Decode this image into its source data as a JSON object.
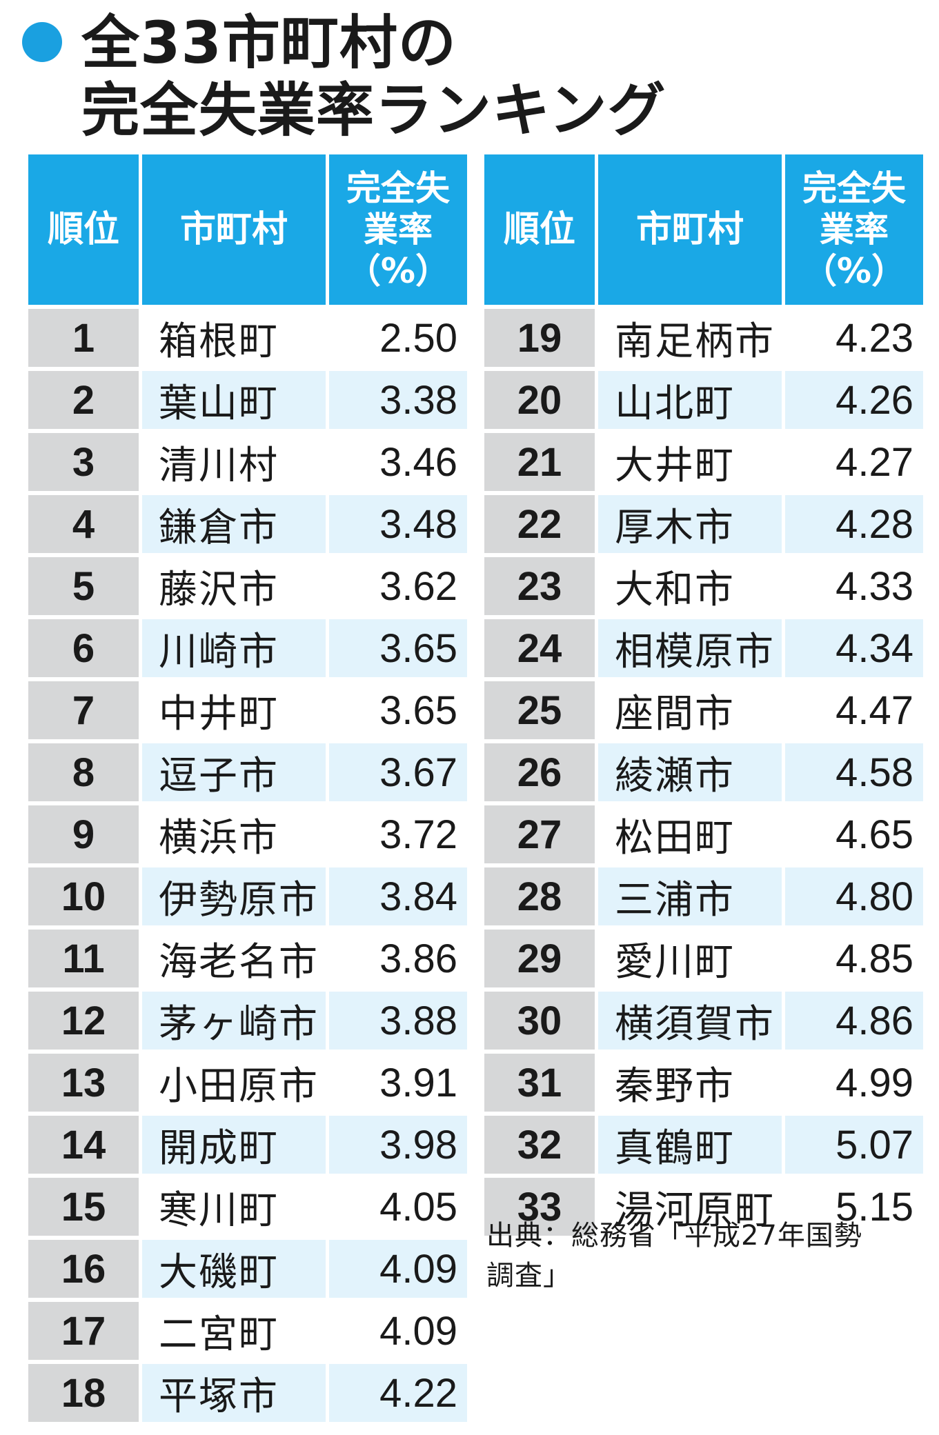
{
  "title": {
    "line1": "全33市町村の",
    "line2": "完全失業率ランキング"
  },
  "colors": {
    "accent": "#1aa0e0",
    "header_bg": "#1aa8e6",
    "rank_bg": "#d6d7d8",
    "stripe_light": "#e2f3fc",
    "plain_bg": "#ffffff",
    "text": "#1a1a1a"
  },
  "headers": {
    "rank": "順位",
    "municipality": "市町村",
    "rate_line1": "完全失",
    "rate_line2": "業率",
    "rate_line3": "（%）"
  },
  "rows": [
    {
      "rank": "1",
      "name": "箱根町",
      "rate": "2.50"
    },
    {
      "rank": "2",
      "name": "葉山町",
      "rate": "3.38"
    },
    {
      "rank": "3",
      "name": "清川村",
      "rate": "3.46"
    },
    {
      "rank": "4",
      "name": "鎌倉市",
      "rate": "3.48"
    },
    {
      "rank": "5",
      "name": "藤沢市",
      "rate": "3.62"
    },
    {
      "rank": "6",
      "name": "川崎市",
      "rate": "3.65"
    },
    {
      "rank": "7",
      "name": "中井町",
      "rate": "3.65"
    },
    {
      "rank": "8",
      "name": "逗子市",
      "rate": "3.67"
    },
    {
      "rank": "9",
      "name": "横浜市",
      "rate": "3.72"
    },
    {
      "rank": "10",
      "name": "伊勢原市",
      "rate": "3.84"
    },
    {
      "rank": "11",
      "name": "海老名市",
      "rate": "3.86"
    },
    {
      "rank": "12",
      "name": "茅ヶ崎市",
      "rate": "3.88"
    },
    {
      "rank": "13",
      "name": "小田原市",
      "rate": "3.91"
    },
    {
      "rank": "14",
      "name": "開成町",
      "rate": "3.98"
    },
    {
      "rank": "15",
      "name": "寒川町",
      "rate": "4.05"
    },
    {
      "rank": "16",
      "name": "大磯町",
      "rate": "4.09"
    },
    {
      "rank": "17",
      "name": "二宮町",
      "rate": "4.09"
    },
    {
      "rank": "18",
      "name": "平塚市",
      "rate": "4.22"
    },
    {
      "rank": "19",
      "name": "南足柄市",
      "rate": "4.23"
    },
    {
      "rank": "20",
      "name": "山北町",
      "rate": "4.26"
    },
    {
      "rank": "21",
      "name": "大井町",
      "rate": "4.27"
    },
    {
      "rank": "22",
      "name": "厚木市",
      "rate": "4.28"
    },
    {
      "rank": "23",
      "name": "大和市",
      "rate": "4.33"
    },
    {
      "rank": "24",
      "name": "相模原市",
      "rate": "4.34"
    },
    {
      "rank": "25",
      "name": "座間市",
      "rate": "4.47"
    },
    {
      "rank": "26",
      "name": "綾瀬市",
      "rate": "4.58"
    },
    {
      "rank": "27",
      "name": "松田町",
      "rate": "4.65"
    },
    {
      "rank": "28",
      "name": "三浦市",
      "rate": "4.80"
    },
    {
      "rank": "29",
      "name": "愛川町",
      "rate": "4.85"
    },
    {
      "rank": "30",
      "name": "横須賀市",
      "rate": "4.86"
    },
    {
      "rank": "31",
      "name": "秦野市",
      "rate": "4.99"
    },
    {
      "rank": "32",
      "name": "真鶴町",
      "rate": "5.07"
    },
    {
      "rank": "33",
      "name": "湯河原町",
      "rate": "5.15"
    }
  ],
  "source": {
    "line1": "出典：総務省「平成27年国勢",
    "line2": "調査」"
  }
}
